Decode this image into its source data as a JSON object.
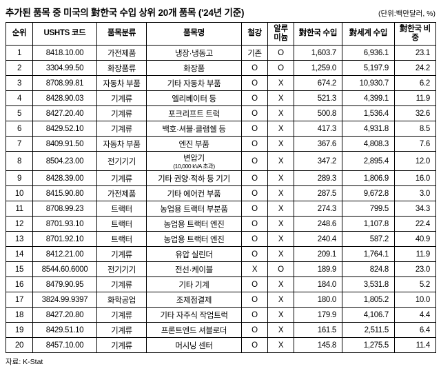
{
  "title": "추가된 품목 중 미국의 對한국 수입 상위 20개 품목 ('24년 기준)",
  "unit_note": "(단위:백만달러, %)",
  "source": "자료: K-Stat",
  "table": {
    "headers": [
      "순위",
      "USHTS 코드",
      "품목분류",
      "품목명",
      "철강",
      "알루\n미늄",
      "對한국 수입",
      "對세계 수입",
      "對한국 비중"
    ],
    "rows": [
      {
        "rank": "1",
        "code": "8418.10.00",
        "category": "가전제품",
        "item": "냉장·냉동고",
        "item_sub": "",
        "steel": "기존",
        "aluminum": "O",
        "kr_import": "1,603.7",
        "world_import": "6,936.1",
        "kr_share": "23.1"
      },
      {
        "rank": "2",
        "code": "3304.99.50",
        "category": "화장품류",
        "item": "화장품",
        "item_sub": "",
        "steel": "O",
        "aluminum": "O",
        "kr_import": "1,259.0",
        "world_import": "5,197.9",
        "kr_share": "24.2"
      },
      {
        "rank": "3",
        "code": "8708.99.81",
        "category": "자동차 부품",
        "item": "기타 자동차 부품",
        "item_sub": "",
        "steel": "O",
        "aluminum": "X",
        "kr_import": "674.2",
        "world_import": "10,930.7",
        "kr_share": "6.2"
      },
      {
        "rank": "4",
        "code": "8428.90.03",
        "category": "기계류",
        "item": "엘리베이터 등",
        "item_sub": "",
        "steel": "O",
        "aluminum": "X",
        "kr_import": "521.3",
        "world_import": "4,399.1",
        "kr_share": "11.9"
      },
      {
        "rank": "5",
        "code": "8427.20.40",
        "category": "기계류",
        "item": "포크리프트 트럭",
        "item_sub": "",
        "steel": "O",
        "aluminum": "X",
        "kr_import": "500.8",
        "world_import": "1,536.4",
        "kr_share": "32.6"
      },
      {
        "rank": "6",
        "code": "8429.52.10",
        "category": "기계류",
        "item": "백호·셔블·클램쉘 등",
        "item_sub": "",
        "steel": "O",
        "aluminum": "X",
        "kr_import": "417.3",
        "world_import": "4,931.8",
        "kr_share": "8.5"
      },
      {
        "rank": "7",
        "code": "8409.91.50",
        "category": "자동차 부품",
        "item": "엔진 부품",
        "item_sub": "",
        "steel": "O",
        "aluminum": "X",
        "kr_import": "367.6",
        "world_import": "4,808.3",
        "kr_share": "7.6"
      },
      {
        "rank": "8",
        "code": "8504.23.00",
        "category": "전기기기",
        "item": "변압기",
        "item_sub": "(10,000 kVA 초과)",
        "steel": "O",
        "aluminum": "X",
        "kr_import": "347.2",
        "world_import": "2,895.4",
        "kr_share": "12.0"
      },
      {
        "rank": "9",
        "code": "8428.39.00",
        "category": "기계류",
        "item": "기타 권양·적하 등 기기",
        "item_sub": "",
        "steel": "O",
        "aluminum": "X",
        "kr_import": "289.3",
        "world_import": "1,806.9",
        "kr_share": "16.0"
      },
      {
        "rank": "10",
        "code": "8415.90.80",
        "category": "가전제품",
        "item": "기타 에어컨 부품",
        "item_sub": "",
        "steel": "O",
        "aluminum": "X",
        "kr_import": "287.5",
        "world_import": "9,672.8",
        "kr_share": "3.0"
      },
      {
        "rank": "11",
        "code": "8708.99.23",
        "category": "트랙터",
        "item": "농업용 트랙터 부분품",
        "item_sub": "",
        "steel": "O",
        "aluminum": "X",
        "kr_import": "274.3",
        "world_import": "799.5",
        "kr_share": "34.3"
      },
      {
        "rank": "12",
        "code": "8701.93.10",
        "category": "트랙터",
        "item": "농업용 트랙터 엔진",
        "item_sub": "",
        "steel": "O",
        "aluminum": "X",
        "kr_import": "248.6",
        "world_import": "1,107.8",
        "kr_share": "22.4"
      },
      {
        "rank": "13",
        "code": "8701.92.10",
        "category": "트랙터",
        "item": "농업용 트랙터 엔진",
        "item_sub": "",
        "steel": "O",
        "aluminum": "X",
        "kr_import": "240.4",
        "world_import": "587.2",
        "kr_share": "40.9"
      },
      {
        "rank": "14",
        "code": "8412.21.00",
        "category": "기계류",
        "item": "유압 실린더",
        "item_sub": "",
        "steel": "O",
        "aluminum": "X",
        "kr_import": "209.1",
        "world_import": "1,764.1",
        "kr_share": "11.9"
      },
      {
        "rank": "15",
        "code": "8544.60.6000",
        "category": "전기기기",
        "item": "전선·케이블",
        "item_sub": "",
        "steel": "X",
        "aluminum": "O",
        "kr_import": "189.9",
        "world_import": "824.8",
        "kr_share": "23.0"
      },
      {
        "rank": "16",
        "code": "8479.90.95",
        "category": "기계류",
        "item": "기타 기계",
        "item_sub": "",
        "steel": "O",
        "aluminum": "X",
        "kr_import": "184.0",
        "world_import": "3,531.8",
        "kr_share": "5.2"
      },
      {
        "rank": "17",
        "code": "3824.99.9397",
        "category": "화학공업",
        "item": "조제점결제",
        "item_sub": "",
        "steel": "O",
        "aluminum": "X",
        "kr_import": "180.0",
        "world_import": "1,805.2",
        "kr_share": "10.0"
      },
      {
        "rank": "18",
        "code": "8427.20.80",
        "category": "기계류",
        "item": "기타 자주식 작업트럭",
        "item_sub": "",
        "steel": "O",
        "aluminum": "X",
        "kr_import": "179.9",
        "world_import": "4,106.7",
        "kr_share": "4.4"
      },
      {
        "rank": "19",
        "code": "8429.51.10",
        "category": "기계류",
        "item": "프론트엔드 셔블로더",
        "item_sub": "",
        "steel": "O",
        "aluminum": "X",
        "kr_import": "161.5",
        "world_import": "2,511.5",
        "kr_share": "6.4"
      },
      {
        "rank": "20",
        "code": "8457.10.00",
        "category": "기계류",
        "item": "머시닝 센터",
        "item_sub": "",
        "steel": "O",
        "aluminum": "X",
        "kr_import": "145.8",
        "world_import": "1,275.5",
        "kr_share": "11.4"
      }
    ]
  }
}
